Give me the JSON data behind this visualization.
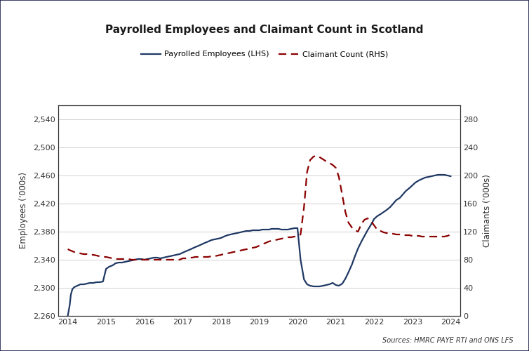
{
  "title": "Payrolled Employees and Claimant Count in Scotland",
  "legend_labels": [
    "Payrolled Employees (LHS)",
    "Claimant Count (RHS)"
  ],
  "lhs_color": "#1f3864",
  "rhs_color": "#8b0000",
  "source_text": "Sources: HMRC PAYE RTI and ONS LFS",
  "lhs_ylim": [
    2260,
    2560
  ],
  "lhs_yticks": [
    2260,
    2300,
    2340,
    2380,
    2420,
    2460,
    2500,
    2540
  ],
  "rhs_ylim": [
    0,
    300
  ],
  "rhs_yticks": [
    0,
    40,
    80,
    120,
    160,
    200,
    240,
    280
  ],
  "xlim_start": 2013.75,
  "xlim_end": 2024.25,
  "xticks": [
    2014,
    2015,
    2016,
    2017,
    2018,
    2019,
    2020,
    2021,
    2022,
    2023,
    2024
  ],
  "payrolled_employees_x": [
    2014.0,
    2014.05,
    2014.08,
    2014.12,
    2014.17,
    2014.25,
    2014.33,
    2014.42,
    2014.5,
    2014.58,
    2014.67,
    2014.75,
    2014.83,
    2014.92,
    2015.0,
    2015.08,
    2015.17,
    2015.25,
    2015.33,
    2015.42,
    2015.5,
    2015.58,
    2015.67,
    2015.75,
    2015.83,
    2015.92,
    2016.0,
    2016.08,
    2016.17,
    2016.25,
    2016.33,
    2016.42,
    2016.5,
    2016.58,
    2016.67,
    2016.75,
    2016.83,
    2016.92,
    2017.0,
    2017.08,
    2017.17,
    2017.25,
    2017.33,
    2017.42,
    2017.5,
    2017.58,
    2017.67,
    2017.75,
    2017.83,
    2017.92,
    2018.0,
    2018.08,
    2018.17,
    2018.25,
    2018.33,
    2018.42,
    2018.5,
    2018.58,
    2018.67,
    2018.75,
    2018.83,
    2018.92,
    2019.0,
    2019.08,
    2019.17,
    2019.25,
    2019.33,
    2019.42,
    2019.5,
    2019.58,
    2019.67,
    2019.75,
    2019.83,
    2019.92,
    2020.0,
    2020.08,
    2020.17,
    2020.25,
    2020.33,
    2020.42,
    2020.5,
    2020.58,
    2020.67,
    2020.75,
    2020.83,
    2020.92,
    2021.0,
    2021.08,
    2021.17,
    2021.25,
    2021.33,
    2021.42,
    2021.5,
    2021.58,
    2021.67,
    2021.75,
    2021.83,
    2021.92,
    2022.0,
    2022.08,
    2022.17,
    2022.25,
    2022.33,
    2022.42,
    2022.5,
    2022.58,
    2022.67,
    2022.75,
    2022.83,
    2022.92,
    2023.0,
    2023.08,
    2023.17,
    2023.25,
    2023.33,
    2023.42,
    2023.5,
    2023.58,
    2023.67,
    2023.75,
    2023.83,
    2023.92,
    2024.0
  ],
  "payrolled_employees_y": [
    2260,
    2275,
    2290,
    2298,
    2301,
    2303,
    2305,
    2305,
    2306,
    2307,
    2307,
    2308,
    2308,
    2309,
    2327,
    2330,
    2332,
    2335,
    2336,
    2336,
    2337,
    2338,
    2339,
    2340,
    2341,
    2341,
    2340,
    2341,
    2342,
    2343,
    2343,
    2342,
    2343,
    2344,
    2345,
    2346,
    2347,
    2348,
    2350,
    2352,
    2354,
    2356,
    2358,
    2360,
    2362,
    2364,
    2366,
    2368,
    2369,
    2370,
    2371,
    2373,
    2375,
    2376,
    2377,
    2378,
    2379,
    2380,
    2381,
    2381,
    2382,
    2382,
    2382,
    2383,
    2383,
    2383,
    2384,
    2384,
    2384,
    2383,
    2383,
    2383,
    2384,
    2385,
    2385,
    2340,
    2312,
    2305,
    2303,
    2302,
    2302,
    2302,
    2303,
    2304,
    2305,
    2307,
    2304,
    2303,
    2306,
    2313,
    2322,
    2333,
    2345,
    2356,
    2366,
    2374,
    2382,
    2390,
    2398,
    2402,
    2405,
    2408,
    2411,
    2415,
    2420,
    2425,
    2428,
    2433,
    2438,
    2442,
    2446,
    2450,
    2453,
    2455,
    2457,
    2458,
    2459,
    2460,
    2461,
    2461,
    2461,
    2460,
    2459
  ],
  "claimant_count_x": [
    2014.0,
    2014.08,
    2014.17,
    2014.25,
    2014.33,
    2014.42,
    2014.5,
    2014.58,
    2014.67,
    2014.75,
    2014.83,
    2014.92,
    2015.0,
    2015.08,
    2015.17,
    2015.25,
    2015.33,
    2015.42,
    2015.5,
    2015.58,
    2015.67,
    2015.75,
    2015.83,
    2015.92,
    2016.0,
    2016.08,
    2016.17,
    2016.25,
    2016.33,
    2016.42,
    2016.5,
    2016.58,
    2016.67,
    2016.75,
    2016.83,
    2016.92,
    2017.0,
    2017.08,
    2017.17,
    2017.25,
    2017.33,
    2017.42,
    2017.5,
    2017.58,
    2017.67,
    2017.75,
    2017.83,
    2017.92,
    2018.0,
    2018.08,
    2018.17,
    2018.25,
    2018.33,
    2018.42,
    2018.5,
    2018.58,
    2018.67,
    2018.75,
    2018.83,
    2018.92,
    2019.0,
    2019.08,
    2019.17,
    2019.25,
    2019.33,
    2019.42,
    2019.5,
    2019.58,
    2019.67,
    2019.75,
    2019.83,
    2019.92,
    2020.0,
    2020.08,
    2020.17,
    2020.25,
    2020.33,
    2020.42,
    2020.5,
    2020.58,
    2020.67,
    2020.75,
    2020.83,
    2020.92,
    2021.0,
    2021.08,
    2021.17,
    2021.25,
    2021.33,
    2021.42,
    2021.5,
    2021.58,
    2021.67,
    2021.75,
    2021.83,
    2021.92,
    2022.0,
    2022.08,
    2022.17,
    2022.25,
    2022.33,
    2022.42,
    2022.5,
    2022.58,
    2022.67,
    2022.75,
    2022.83,
    2022.92,
    2023.0,
    2023.08,
    2023.17,
    2023.25,
    2023.33,
    2023.42,
    2023.5,
    2023.58,
    2023.67,
    2023.75,
    2023.83,
    2023.92,
    2024.0
  ],
  "claimant_count_y": [
    95,
    93,
    91,
    90,
    89,
    88,
    88,
    87,
    87,
    86,
    85,
    84,
    84,
    83,
    82,
    81,
    81,
    81,
    81,
    81,
    80,
    80,
    80,
    80,
    80,
    80,
    80,
    80,
    80,
    80,
    80,
    80,
    80,
    80,
    80,
    80,
    82,
    82,
    83,
    83,
    84,
    84,
    84,
    84,
    84,
    85,
    85,
    86,
    87,
    88,
    89,
    90,
    91,
    92,
    93,
    94,
    95,
    96,
    97,
    98,
    100,
    102,
    104,
    106,
    107,
    108,
    109,
    110,
    111,
    112,
    112,
    113,
    113,
    116,
    155,
    205,
    222,
    227,
    228,
    226,
    223,
    220,
    218,
    215,
    211,
    198,
    172,
    148,
    133,
    126,
    122,
    120,
    131,
    137,
    139,
    135,
    129,
    123,
    121,
    119,
    118,
    117,
    117,
    116,
    116,
    115,
    115,
    115,
    114,
    114,
    114,
    113,
    113,
    113,
    113,
    113,
    113,
    113,
    113,
    114,
    116
  ]
}
